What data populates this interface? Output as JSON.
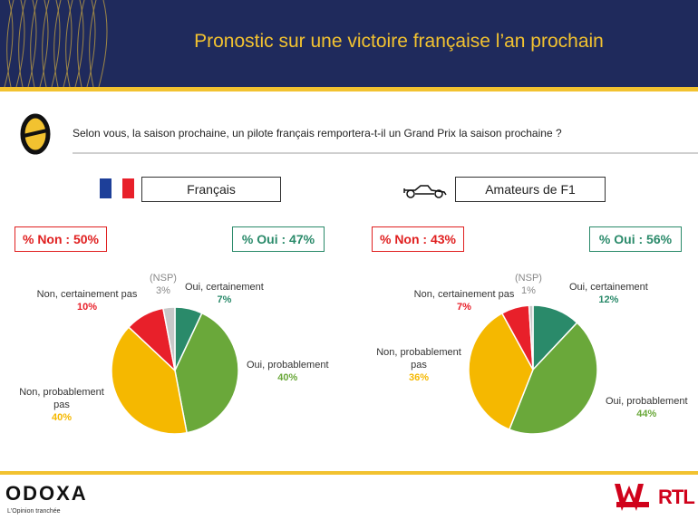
{
  "header": {
    "title": "Pronostic sur une victoire française l’an prochain"
  },
  "question": "Selon vous, la saison prochaine, un pilote français remportera-t-il un Grand Prix la saison prochaine ?",
  "colors": {
    "navy": "#1f2a5c",
    "gold": "#f2c230",
    "teal": "#2a8a6a",
    "green": "#6aa83a",
    "yellow": "#f5b800",
    "red": "#e8202a",
    "grey": "#c8c8c8"
  },
  "icons": [
    "odoxa-question-icon",
    "france-flag-icon",
    "formula1-car-icon"
  ],
  "left": {
    "segment": "Français",
    "non": "% Non : 50%",
    "oui": "% Oui : 47%",
    "labels": {
      "nsp_name": "(NSP)",
      "nsp_val": "3%",
      "oui_cert_name": "Oui, certainement",
      "oui_cert_val": "7%",
      "oui_prob_name": "Oui, probablement",
      "oui_prob_val": "40%",
      "non_prob_name": "Non, probablement pas",
      "non_prob_val": "40%",
      "non_cert_name": "Non, certainement pas",
      "non_cert_val": "10%"
    }
  },
  "right": {
    "segment": "Amateurs de F1",
    "non": "% Non : 43%",
    "oui": "% Oui : 56%",
    "labels": {
      "nsp_name": "(NSP)",
      "nsp_val": "1%",
      "oui_cert_name": "Oui, certainement",
      "oui_cert_val": "12%",
      "oui_prob_name": "Oui, probablement",
      "oui_prob_val": "44%",
      "non_prob_name": "Non, probablement pas",
      "non_prob_val": "36%",
      "non_cert_name": "Non, certainement pas",
      "non_cert_val": "7%"
    }
  },
  "chart_data": [
    {
      "type": "pie",
      "title": "Français",
      "categories": [
        "Oui, certainement",
        "Oui, probablement",
        "Non, probablement pas",
        "Non, certainement pas",
        "(NSP)"
      ],
      "values": [
        7,
        40,
        40,
        10,
        3
      ],
      "colors": [
        "#2a8a6a",
        "#6aa83a",
        "#f5b800",
        "#e8202a",
        "#c8c8c8"
      ]
    },
    {
      "type": "pie",
      "title": "Amateurs de F1",
      "categories": [
        "Oui, certainement",
        "Oui, probablement",
        "Non, probablement pas",
        "Non, certainement pas",
        "(NSP)"
      ],
      "values": [
        12,
        44,
        36,
        7,
        1
      ],
      "colors": [
        "#2a8a6a",
        "#6aa83a",
        "#f5b800",
        "#e8202a",
        "#c8c8c8"
      ]
    }
  ],
  "footer": {
    "brand": "ODOXA",
    "tagline": "L'Opinion tranchée",
    "partner1": "WINAMAX",
    "partner2": "RTL"
  }
}
